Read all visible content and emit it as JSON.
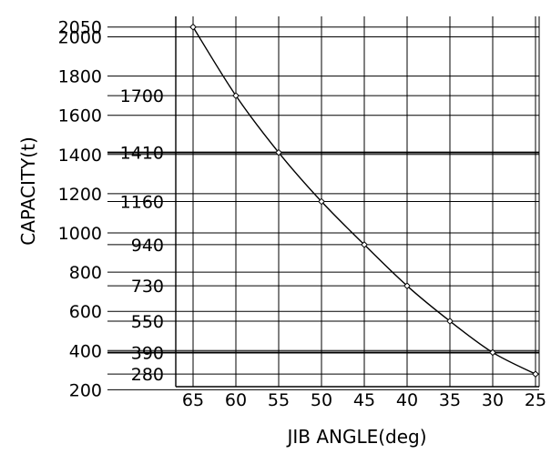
{
  "chart_data": {
    "type": "line",
    "title": "",
    "xlabel": "JIB ANGLE(deg)",
    "ylabel": "CAPACITY(t)",
    "x_reversed": true,
    "grid": true,
    "x": [
      65,
      60,
      55,
      50,
      45,
      40,
      35,
      30,
      25
    ],
    "x_tick_labels": [
      "65",
      "60",
      "55",
      "50",
      "45",
      "40",
      "35",
      "30",
      "25"
    ],
    "series": [
      {
        "values": [
          2050,
          1700,
          1410,
          1160,
          940,
          730,
          550,
          390,
          280
        ]
      }
    ],
    "y_tick_values": [
      200,
      400,
      600,
      800,
      1000,
      1200,
      1400,
      1600,
      1800,
      2000,
      2050
    ],
    "data_labels": [
      {
        "text": "1700",
        "value": 1700
      },
      {
        "text": "1410",
        "value": 1410
      },
      {
        "text": "1160",
        "value": 1160
      },
      {
        "text": "940",
        "value": 940
      },
      {
        "text": "730",
        "value": 730
      },
      {
        "text": "550",
        "value": 550
      },
      {
        "text": "390",
        "value": 390
      },
      {
        "text": "280",
        "value": 280
      }
    ]
  }
}
